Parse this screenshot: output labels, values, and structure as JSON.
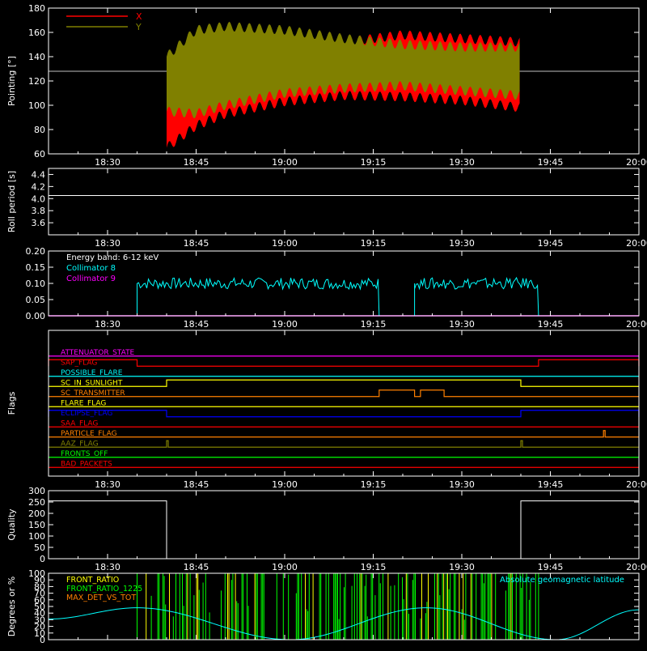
{
  "chart_data": [
    {
      "type": "area",
      "ylabel": "Pointing [°]",
      "ylim": [
        60,
        180
      ],
      "yticks": [
        60,
        80,
        100,
        120,
        140,
        160,
        180
      ],
      "xticks": [
        "18:30",
        "18:45",
        "19:00",
        "19:15",
        "19:30",
        "19:45",
        "20:00"
      ],
      "xlim_minutes": [
        18.33,
        20.0
      ],
      "legend": [
        {
          "name": "X",
          "color": "#ff0000"
        },
        {
          "name": "Y",
          "color": "#808000"
        }
      ],
      "reference_line": 128,
      "series": [
        {
          "name": "X",
          "color": "#ff0000",
          "t": [
            "18:40",
            "18:45",
            "18:50",
            "19:00",
            "19:10",
            "19:20",
            "19:30",
            "19:40"
          ],
          "upper": [
            128,
            155,
            153,
            150,
            152,
            158,
            155,
            152
          ],
          "lower": [
            65,
            83,
            93,
            103,
            108,
            107,
            104,
            98
          ]
        },
        {
          "name": "Y",
          "color": "#808000",
          "t": [
            "18:40",
            "18:45",
            "18:50",
            "19:00",
            "19:10",
            "19:20",
            "19:30",
            "19:40"
          ],
          "upper": [
            140,
            162,
            165,
            162,
            155,
            150,
            148,
            148
          ],
          "lower": [
            95,
            93,
            100,
            110,
            114,
            116,
            112,
            108
          ]
        }
      ]
    },
    {
      "type": "line",
      "ylabel": "Roll period [s]",
      "ylim": [
        3.4,
        4.5
      ],
      "yticks": [
        3.6,
        3.8,
        4.0,
        4.2,
        4.4
      ],
      "xticks": [
        "18:30",
        "18:45",
        "19:00",
        "19:15",
        "19:30",
        "19:45",
        "20:00"
      ],
      "series": [
        {
          "name": "",
          "color": "#ffffff",
          "t": [
            "18:20",
            "20:00"
          ],
          "values": [
            4.05,
            4.05
          ]
        }
      ]
    },
    {
      "type": "line",
      "ylabel": "Normalized modulation",
      "ylim": [
        0.0,
        0.2
      ],
      "yticks": [
        0.0,
        0.05,
        0.1,
        0.15,
        0.2
      ],
      "xticks": [
        "18:30",
        "18:45",
        "19:00",
        "19:15",
        "19:30",
        "19:45",
        "20:00"
      ],
      "annotation": "Energy band: 6-12 keV",
      "legend": [
        {
          "name": "Collimator 8",
          "color": "#00ffff"
        },
        {
          "name": "Collimator 9",
          "color": "#ff00ff"
        }
      ],
      "segments": [
        {
          "start": "18:35",
          "end": "19:16",
          "level": 0.1
        },
        {
          "start": "19:22",
          "end": "19:43",
          "level": 0.1
        }
      ]
    },
    {
      "type": "line",
      "ylabel": "Flags",
      "xticks": [
        "18:30",
        "18:45",
        "19:00",
        "19:15",
        "19:30",
        "19:45",
        "20:00"
      ],
      "flags": [
        {
          "name": "ATTENUATOR_STATE",
          "color": "#ff00ff",
          "high": []
        },
        {
          "name": "SAP_FLAG",
          "color": "#ff0000",
          "high": [
            [
              "18:20",
              "18:35"
            ],
            [
              "19:43",
              "20:00"
            ]
          ]
        },
        {
          "name": "POSSIBLE_FLARE",
          "color": "#00ffff",
          "high": []
        },
        {
          "name": "SC_IN_SUNLIGHT",
          "color": "#ffff00",
          "high": [
            [
              "18:40",
              "19:40"
            ]
          ]
        },
        {
          "name": "SC_TRANSMITTER",
          "color": "#ff8000",
          "high": [
            [
              "19:16",
              "19:22"
            ],
            [
              "19:23",
              "19:27"
            ]
          ]
        },
        {
          "name": "FLARE_FLAG",
          "color": "#ffff00",
          "high": []
        },
        {
          "name": "ECLIPSE_FLAG",
          "color": "#0000ff",
          "high": [
            [
              "18:20",
              "18:40"
            ],
            [
              "19:40",
              "20:00"
            ]
          ]
        },
        {
          "name": "SAA_FLAG",
          "color": "#ff0000",
          "high": []
        },
        {
          "name": "PARTICLE_FLAG",
          "color": "#ff8000",
          "high": [
            [
              "19:54",
              "19:54"
            ]
          ]
        },
        {
          "name": "AAZ_FLAG",
          "color": "#808000",
          "high": [
            [
              "18:40",
              "18:40"
            ],
            [
              "19:40",
              "19:40"
            ]
          ]
        },
        {
          "name": "FRONTS_OFF",
          "color": "#00ff00",
          "high": []
        },
        {
          "name": "BAD_PACKETS",
          "color": "#ff0000",
          "high": []
        }
      ]
    },
    {
      "type": "line",
      "ylabel": "Quality",
      "ylim": [
        0,
        300
      ],
      "yticks": [
        0,
        50,
        100,
        150,
        200,
        250,
        300
      ],
      "xticks": [
        "18:30",
        "18:45",
        "19:00",
        "19:15",
        "19:30",
        "19:45",
        "20:00"
      ],
      "series": [
        {
          "name": "",
          "color": "#ffffff",
          "t": [
            "18:20",
            "18:40",
            "18:40",
            "19:40",
            "19:40",
            "20:00"
          ],
          "values": [
            255,
            255,
            0,
            0,
            255,
            255
          ]
        }
      ]
    },
    {
      "type": "line",
      "ylabel": "Degrees or %",
      "ylim": [
        0,
        100
      ],
      "yticks": [
        0,
        10,
        20,
        30,
        40,
        50,
        60,
        70,
        80,
        90,
        100
      ],
      "legend": [
        {
          "name": "FRONT_RATIO",
          "color": "#ffff00"
        },
        {
          "name": "FRONT_RATIO_1225",
          "color": "#00ff00"
        },
        {
          "name": "MAX_DET_VS_TOT",
          "color": "#ff8000"
        }
      ],
      "right_legend": {
        "name": "Absolute geomagnetic latitude",
        "color": "#00ffff"
      },
      "latitude": {
        "t": [
          "18:20",
          "18:35",
          "19:01",
          "19:24",
          "19:46",
          "20:00"
        ],
        "values": [
          31,
          48,
          0,
          48,
          0,
          45
        ]
      },
      "spikes_range": [
        "18:35",
        "19:43"
      ]
    }
  ]
}
